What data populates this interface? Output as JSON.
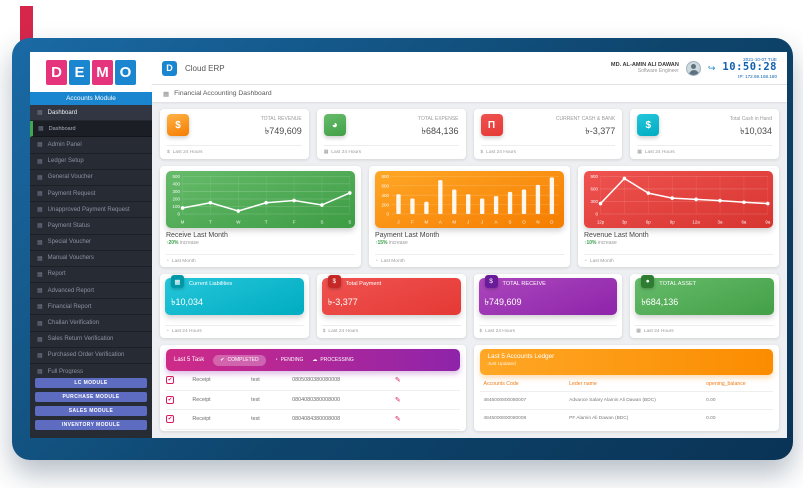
{
  "logo": {
    "letters": [
      {
        "ch": "D",
        "bg": "#e5347c"
      },
      {
        "ch": "E",
        "bg": "#1a86d0"
      },
      {
        "ch": "M",
        "bg": "#e5347c"
      },
      {
        "ch": "O",
        "bg": "#1a86d0"
      }
    ]
  },
  "sidebar": {
    "module_label": "Accounts Module",
    "item_icon": "▦",
    "items": [
      {
        "label": "Dashboard",
        "state": "active"
      },
      {
        "label": "Dashboard",
        "state": "sub"
      },
      {
        "label": "Admin Panel",
        "state": ""
      },
      {
        "label": "Ledger Setup",
        "state": ""
      },
      {
        "label": "General Voucher",
        "state": ""
      },
      {
        "label": "Payment Request",
        "state": ""
      },
      {
        "label": "Unapproved Payment Request",
        "state": ""
      },
      {
        "label": "Payment Status",
        "state": ""
      },
      {
        "label": "Special Voucher",
        "state": ""
      },
      {
        "label": "Manual Vouchers",
        "state": ""
      },
      {
        "label": "Report",
        "state": ""
      },
      {
        "label": "Advanced Report",
        "state": ""
      },
      {
        "label": "Financial Report",
        "state": ""
      },
      {
        "label": "Challan Verification",
        "state": ""
      },
      {
        "label": "Sales Return Verification",
        "state": ""
      },
      {
        "label": "Purchased Order Verification",
        "state": ""
      },
      {
        "label": "Full Progress",
        "state": ""
      }
    ],
    "module_buttons": [
      "LC MODULE",
      "PURCHASE MODULE",
      "SALES MODULE",
      "INVENTORY MODULE"
    ]
  },
  "header": {
    "app_badge": "D",
    "app_name": "Cloud ERP",
    "user_name": "MD. AL-AMIN ALI DAWAN",
    "user_role": "Software Engineer",
    "logout_icon": "↪",
    "date": "2021-10-07 TUE",
    "time": "10:50:28",
    "ip": "IP: 172.69.168.180"
  },
  "page": {
    "title": "Financial Accounting Dashboard",
    "icon": "▦"
  },
  "stat_cards": [
    {
      "label": "TOTAL REVENUE",
      "value": "৳749,609",
      "icon": "$",
      "grad": [
        "#ffb347",
        "#f57c00"
      ],
      "footer_icon": "$",
      "footer": "Last 24 Hours"
    },
    {
      "label": "TOTAL EXPENSE",
      "value": "৳684,136",
      "icon": "◕",
      "grad": [
        "#66bb6a",
        "#43a047"
      ],
      "footer_icon": "▦",
      "footer": "Last 24 Hours"
    },
    {
      "label": "CURRENT CASH & BANK",
      "value": "৳-3,377",
      "icon": "Π",
      "grad": [
        "#ef5350",
        "#e53935"
      ],
      "footer_icon": "$",
      "footer": "Last 24 Hours"
    },
    {
      "label": "Total Cash in Hand",
      "value": "৳10,034",
      "icon": "$",
      "grad": [
        "#26c6da",
        "#00acc1"
      ],
      "footer_icon": "▦",
      "footer": "Last 24 Hours"
    }
  ],
  "chart_data": [
    {
      "type": "line",
      "title": "Receive Last Month",
      "pct": "↑20%",
      "sub_text": "increase",
      "footer_icon": "◔",
      "footer": "Last Month",
      "grad": [
        "#66bb6a",
        "#3d9c44"
      ],
      "categories": [
        "M",
        "T",
        "W",
        "T",
        "F",
        "S",
        "S"
      ],
      "values": [
        80,
        150,
        40,
        150,
        180,
        120,
        280
      ],
      "yticks": [
        500,
        400,
        300,
        200,
        100,
        0
      ],
      "ylim": [
        0,
        500
      ],
      "grid": true,
      "xlabel": "",
      "ylabel": ""
    },
    {
      "type": "bar",
      "title": "Payment Last Month",
      "pct": "↑15%",
      "sub_text": "increase",
      "footer_icon": "◔",
      "footer": "Last Month",
      "grad": [
        "#ffa726",
        "#f57c00"
      ],
      "categories": [
        "J",
        "F",
        "M",
        "A",
        "M",
        "J",
        "J",
        "A",
        "S",
        "O",
        "N",
        "D"
      ],
      "values": [
        420,
        330,
        260,
        720,
        520,
        420,
        330,
        380,
        470,
        520,
        620,
        780
      ],
      "yticks": [
        800,
        600,
        400,
        200,
        0
      ],
      "ylim": [
        0,
        800
      ],
      "grid": true,
      "xlabel": "",
      "ylabel": ""
    },
    {
      "type": "line",
      "title": "Revenue Last Month",
      "pct": "↑10%",
      "sub_text": "increase",
      "footer_icon": "◔",
      "footer": "Last Month",
      "grad": [
        "#ef5350",
        "#d7342f"
      ],
      "categories": [
        "12p",
        "3p",
        "6p",
        "9p",
        "12a",
        "3a",
        "6a",
        "9a"
      ],
      "values": [
        250,
        850,
        500,
        380,
        350,
        320,
        280,
        250
      ],
      "yticks": [
        900,
        600,
        300,
        0
      ],
      "ylim": [
        0,
        900
      ],
      "grid": true,
      "xlabel": "",
      "ylabel": ""
    }
  ],
  "metric_tiles": [
    {
      "title": "Current Liabilities",
      "value": "৳10,034",
      "icon": "▦",
      "grad": [
        "#26c6da",
        "#00acc1"
      ],
      "badge_bg": "#0097a7",
      "footer_icon": "◔",
      "footer": "Last 24 Hours"
    },
    {
      "title": "Total Payment",
      "value": "৳-3,377",
      "icon": "$",
      "grad": [
        "#ef5350",
        "#e53935"
      ],
      "badge_bg": "#c62828",
      "footer_icon": "$",
      "footer": "Last 24 Hours"
    },
    {
      "title": "TOTAL RECEIVE",
      "value": "৳749,609",
      "icon": "$",
      "grad": [
        "#ab47bc",
        "#8e24aa"
      ],
      "badge_bg": "#6a1b9a",
      "footer_icon": "$",
      "footer": "Last 24 Hours"
    },
    {
      "title": "TOTAL ASSET",
      "value": "৳684,136",
      "icon": "●",
      "grad": [
        "#66bb6a",
        "#43a047"
      ],
      "badge_bg": "#2e7d32",
      "footer_icon": "▦",
      "footer": "Last 24 Hours"
    }
  ],
  "task_panel": {
    "title": "Last 5 Task",
    "tabs": [
      {
        "label": "COMPLETED",
        "icon": "✔",
        "active": true
      },
      {
        "label": "PENDING",
        "icon": "◔",
        "active": false
      },
      {
        "label": "PROCESSING",
        "icon": "☁",
        "active": false
      }
    ],
    "check_icon": "✔",
    "edit_icon": "✎",
    "rows": [
      {
        "type": "Receipt",
        "ref": "test",
        "number": "0805080380080008"
      },
      {
        "type": "Receipt",
        "ref": "test",
        "number": "0804080380008000"
      },
      {
        "type": "Receipt",
        "ref": "test",
        "number": "0804084380008008"
      }
    ]
  },
  "ledger_panel": {
    "title": "Last 5 Accounts Ledger",
    "subtitle": "Just Updated",
    "columns": [
      "Accounts Code",
      "Leder name",
      "opening_balance"
    ],
    "rows": [
      {
        "code": "4845000800080007",
        "name": "Advance Salary Alamin Ali Dawan (BDC)",
        "balance": "0.00"
      },
      {
        "code": "4845000800080008",
        "name": "PF Alamin Ali Dawan (BDC)",
        "balance": "0.00"
      }
    ]
  }
}
